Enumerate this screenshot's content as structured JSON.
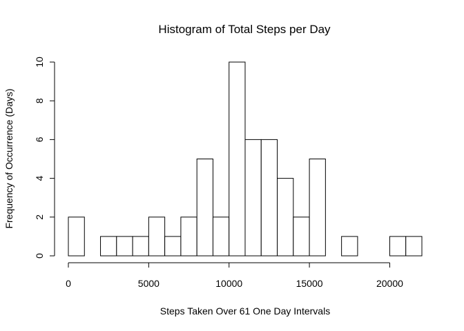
{
  "chart_data": {
    "type": "bar",
    "title": "Histogram of Total Steps per Day",
    "xlabel": "Steps Taken Over 61 One Day Intervals",
    "ylabel": "Frequency of Occurrence (Days)",
    "bin_width": 1000,
    "bins_start": [
      0,
      1000,
      2000,
      3000,
      4000,
      5000,
      6000,
      7000,
      8000,
      9000,
      10000,
      11000,
      12000,
      13000,
      14000,
      15000,
      16000,
      17000,
      18000,
      19000,
      20000,
      21000
    ],
    "values": [
      2,
      0,
      1,
      1,
      1,
      2,
      1,
      2,
      5,
      2,
      10,
      6,
      6,
      4,
      2,
      5,
      0,
      1,
      0,
      0,
      1,
      1
    ],
    "xlim": [
      0,
      22000
    ],
    "ylim": [
      0,
      10
    ],
    "x_ticks": [
      0,
      5000,
      10000,
      15000,
      20000
    ],
    "y_ticks": [
      0,
      2,
      4,
      6,
      8,
      10
    ],
    "bar_fill": "#ffffff",
    "bar_stroke": "#000000",
    "grid": false
  }
}
